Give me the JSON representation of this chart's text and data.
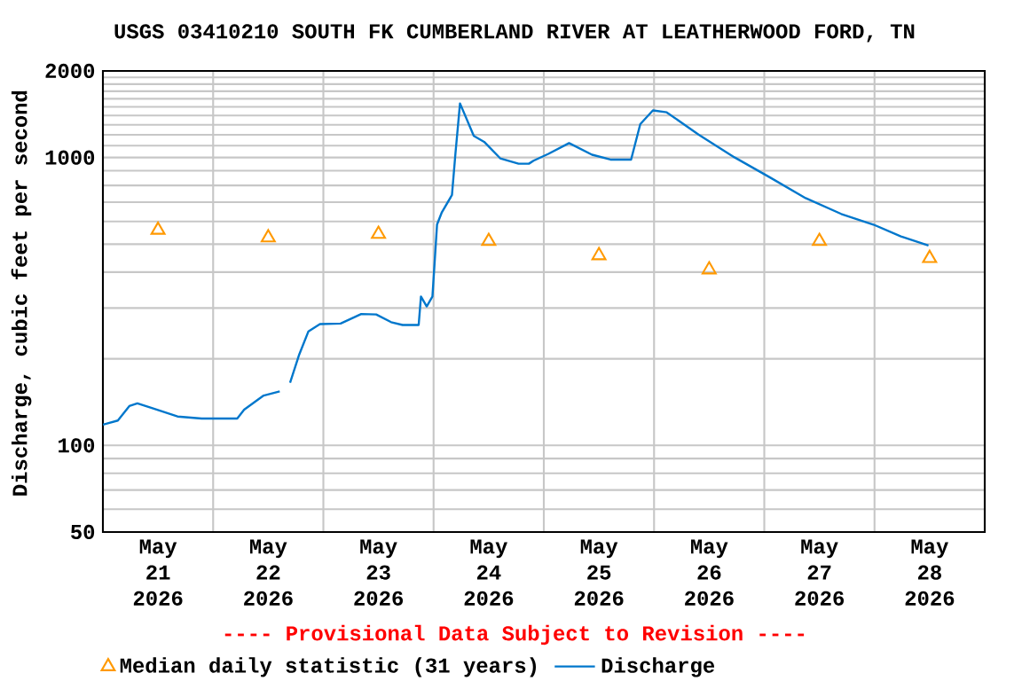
{
  "chart_data": {
    "type": "line",
    "title": "USGS 03410210 SOUTH FK CUMBERLAND RIVER AT LEATHERWOOD FORD, TN",
    "ylabel": "Discharge, cubic feet per second",
    "annotations": [
      "---- Provisional Data Subject to Revision ----"
    ],
    "log": true,
    "grid": true,
    "legend": "bottom",
    "xlim": [
      "2026-05-21T00:00",
      "2026-05-29T00:00"
    ],
    "xticks": [
      {
        "value": "2026-05-21T12:00",
        "label": "May 21 2026"
      },
      {
        "value": "2026-05-22T12:00",
        "label": "May 22 2026"
      },
      {
        "value": "2026-05-23T12:00",
        "label": "May 23 2026"
      },
      {
        "value": "2026-05-24T12:00",
        "label": "May 24 2026"
      },
      {
        "value": "2026-05-25T12:00",
        "label": "May 25 2026"
      },
      {
        "value": "2026-05-26T12:00",
        "label": "May 26 2026"
      },
      {
        "value": "2026-05-27T12:00",
        "label": "May 27 2026"
      },
      {
        "value": "2026-05-28T12:00",
        "label": "May 28 2026"
      },
      {
        "value": "2026-05-22T00:00",
        "label": null
      },
      {
        "value": "2026-05-23T00:00",
        "label": null
      },
      {
        "value": "2026-05-24T00:00",
        "label": null
      },
      {
        "value": "2026-05-25T00:00",
        "label": null
      },
      {
        "value": "2026-05-26T00:00",
        "label": null
      },
      {
        "value": "2026-05-27T00:00",
        "label": null
      },
      {
        "value": "2026-05-28T00:00",
        "label": null
      }
    ],
    "ylim": [
      50,
      2000
    ],
    "yticks": [
      50,
      {
        "value": 60,
        "label": null
      },
      {
        "value": 70,
        "label": null
      },
      {
        "value": 80,
        "label": null
      },
      {
        "value": 90,
        "label": null
      },
      100,
      {
        "value": 200,
        "label": null
      },
      {
        "value": 300,
        "label": null
      },
      {
        "value": 400,
        "label": null
      },
      {
        "value": 500,
        "label": null
      },
      {
        "value": 600,
        "label": null
      },
      {
        "value": 700,
        "label": null
      },
      {
        "value": 800,
        "label": null
      },
      {
        "value": 900,
        "label": null
      },
      1000,
      {
        "value": 1100,
        "label": null
      },
      {
        "value": 1200,
        "label": null
      },
      {
        "value": 1300,
        "label": null
      },
      {
        "value": 1400,
        "label": null
      },
      {
        "value": 1500,
        "label": null
      },
      {
        "value": 1600,
        "label": null
      },
      {
        "value": 1700,
        "label": null
      },
      {
        "value": 1800,
        "label": null
      },
      {
        "value": 1900,
        "label": null
      },
      2000
    ],
    "series": [
      {
        "name": "Median daily statistic (31 years)",
        "type": "scatter",
        "marker": "triangle",
        "color": "#ff9900",
        "x": [
          "2026-05-21T12:00",
          "2026-05-22T12:00",
          "2026-05-23T12:00",
          "2026-05-24T12:00",
          "2026-05-25T12:00",
          "2026-05-26T12:00",
          "2026-05-27T12:00",
          "2026-05-28T12:00"
        ],
        "values": [
          560,
          527,
          542,
          512,
          457,
          408,
          512,
          447
        ]
      },
      {
        "name": "Discharge",
        "marker": "none",
        "line_style": "solid",
        "color": "#0077cc",
        "x": [
          "2026-05-21T00:00",
          "2026-05-21T03:15",
          "2026-05-21T05:45",
          "2026-05-21T07:30",
          "2026-05-21T10:30",
          "2026-05-21T16:15",
          "2026-05-21T21:30",
          "2026-05-22T05:15",
          "2026-05-22T06:45",
          "2026-05-22T11:00",
          "2026-05-22T14:30",
          "2026-05-22T15:30",
          "2026-05-22T16:45",
          "2026-05-22T18:45",
          "2026-05-22T20:45",
          "2026-05-22T23:15",
          "2026-05-23T03:45",
          "2026-05-23T08:15",
          "2026-05-23T11:30",
          "2026-05-23T14:45",
          "2026-05-23T17:15",
          "2026-05-23T20:45",
          "2026-05-23T21:15",
          "2026-05-23T22:30",
          "2026-05-23T23:45",
          "2026-05-24T00:45",
          "2026-05-24T01:45",
          "2026-05-24T04:00",
          "2026-05-24T04:45",
          "2026-05-24T05:45",
          "2026-05-24T08:45",
          "2026-05-24T11:00",
          "2026-05-24T14:30",
          "2026-05-24T18:30",
          "2026-05-24T20:45",
          "2026-05-24T21:45",
          "2026-05-25T01:00",
          "2026-05-25T05:30",
          "2026-05-25T10:30",
          "2026-05-25T14:30",
          "2026-05-25T19:00",
          "2026-05-25T21:00",
          "2026-05-25T23:45",
          "2026-05-26T02:45",
          "2026-05-26T09:45",
          "2026-05-26T17:30",
          "2026-05-27T01:15",
          "2026-05-27T09:00",
          "2026-05-27T16:45",
          "2026-05-27T23:45",
          "2026-05-28T05:45",
          "2026-05-28T11:45"
        ],
        "values": [
          118,
          122,
          137,
          140,
          135,
          126,
          124,
          124,
          133,
          149,
          154,
          null,
          165,
          207,
          249,
          264,
          265,
          286,
          285,
          268,
          262,
          262,
          329,
          304,
          329,
          585,
          643,
          741,
          1030,
          1542,
          1189,
          1134,
          994,
          952,
          952,
          975,
          1030,
          1123,
          1023,
          984,
          984,
          1306,
          1458,
          1436,
          1200,
          1002,
          853,
          723,
          637,
          585,
          532,
          495
        ]
      }
    ]
  }
}
